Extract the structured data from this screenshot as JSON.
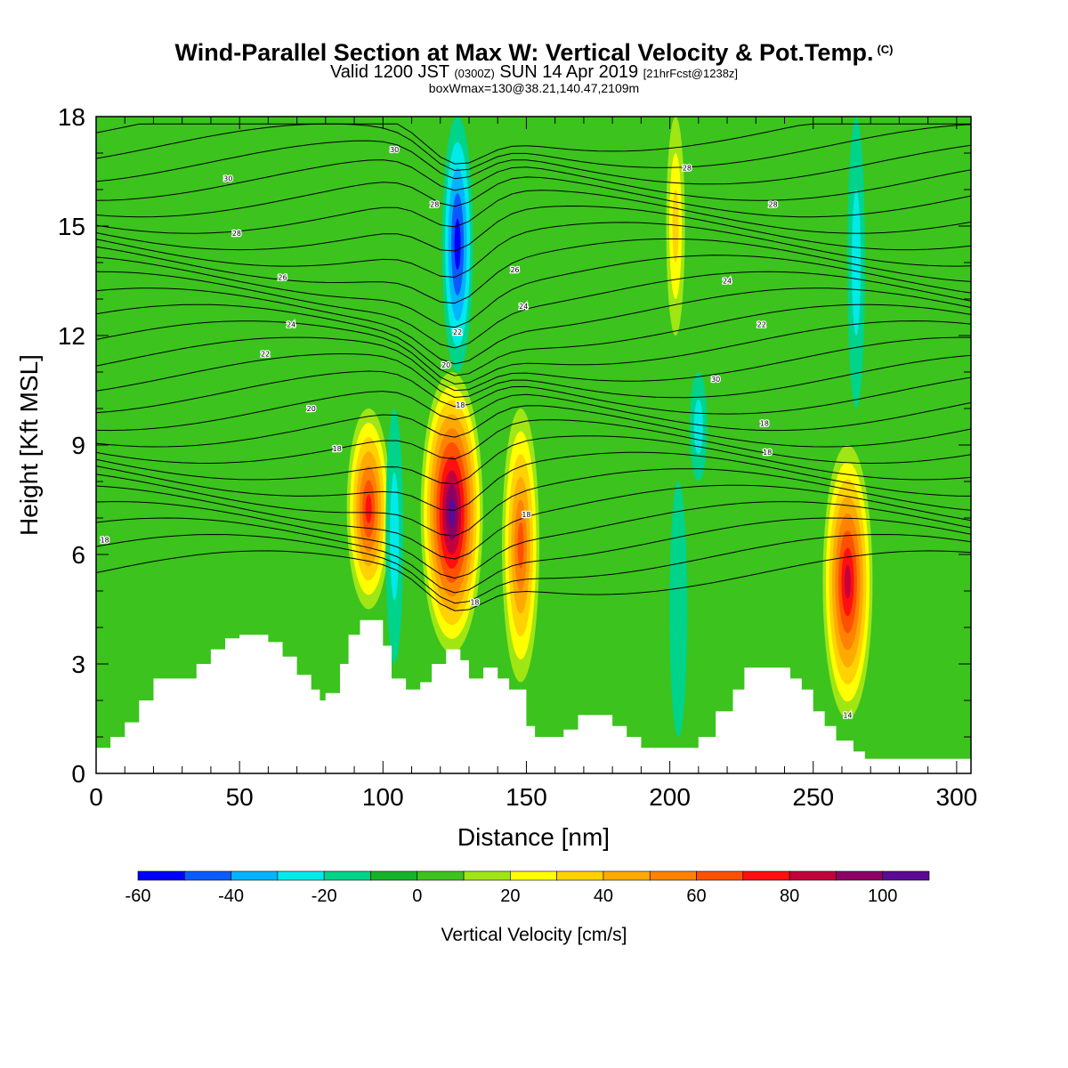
{
  "chart_data": {
    "type": "heatmap",
    "title": "Wind-Parallel Section at Max W: Vertical Velocity & Pot.Temp.",
    "title_mark": "(C)",
    "subtitle_main": "Valid 1200 JST",
    "subtitle_utc": "(0300Z)",
    "subtitle_date": "SUN 14 Apr 2019",
    "subtitle_run": "[21hrFcst@1238z]",
    "subtitle2": "boxWmax=130@38.21,140.47,2109m",
    "xlabel": "Distance [nm]",
    "ylabel": "Height [Kft MSL]",
    "xlim": [
      0,
      305
    ],
    "ylim": [
      0,
      18
    ],
    "x_ticks": [
      "0",
      "50",
      "100",
      "150",
      "200",
      "250",
      "300"
    ],
    "y_ticks": [
      "0",
      "3",
      "6",
      "9",
      "12",
      "15",
      "18"
    ],
    "colorbar": {
      "label": "Vertical Velocity [cm/s]",
      "bounds": [
        -60,
        110
      ],
      "step": 10,
      "tick_labels": [
        "-60",
        "-40",
        "-20",
        "0",
        "20",
        "40",
        "60",
        "80",
        "100"
      ],
      "colors": [
        "#0000ff",
        "#0a5bff",
        "#00b4ff",
        "#00eaea",
        "#00d38a",
        "#14b428",
        "#3cc31e",
        "#a0e614",
        "#ffff00",
        "#ffd200",
        "#ffaa00",
        "#ff8200",
        "#ff5000",
        "#ff0f0f",
        "#c3003c",
        "#8c0064",
        "#5a0a96"
      ]
    },
    "background_value": 0,
    "velocity_features": [
      {
        "x": 95,
        "height_range": [
          4.5,
          10
        ],
        "peak": 70
      },
      {
        "x": 124,
        "height_range": [
          3.3,
          11
        ],
        "peak": 100
      },
      {
        "x": 148,
        "height_range": [
          2.5,
          10
        ],
        "peak": 60
      },
      {
        "x": 262,
        "height_range": [
          1.5,
          9
        ],
        "peak": 80
      },
      {
        "x": 126,
        "height_range": [
          11,
          18
        ],
        "peak": -50
      },
      {
        "x": 104,
        "height_range": [
          3,
          10
        ],
        "peak": -20
      },
      {
        "x": 203,
        "height_range": [
          1,
          8
        ],
        "peak": -15
      },
      {
        "x": 265,
        "height_range": [
          10,
          18
        ],
        "peak": -25
      },
      {
        "x": 202,
        "height_range": [
          12,
          18
        ],
        "peak": 30
      },
      {
        "x": 210,
        "height_range": [
          8,
          11
        ],
        "peak": -25
      }
    ],
    "terrain": [
      [
        0,
        0.7
      ],
      [
        5,
        1
      ],
      [
        10,
        1.4
      ],
      [
        15,
        2
      ],
      [
        20,
        2.6
      ],
      [
        30,
        2.6
      ],
      [
        35,
        3
      ],
      [
        40,
        3.4
      ],
      [
        45,
        3.7
      ],
      [
        50,
        3.8
      ],
      [
        55,
        3.8
      ],
      [
        60,
        3.6
      ],
      [
        65,
        3.2
      ],
      [
        70,
        2.7
      ],
      [
        75,
        2.3
      ],
      [
        78,
        2
      ],
      [
        80,
        2.2
      ],
      [
        85,
        3
      ],
      [
        88,
        3.8
      ],
      [
        92,
        4.2
      ],
      [
        98,
        4.2
      ],
      [
        100,
        3.5
      ],
      [
        103,
        2.6
      ],
      [
        108,
        2.3
      ],
      [
        113,
        2.5
      ],
      [
        117,
        3
      ],
      [
        122,
        3.4
      ],
      [
        127,
        3.1
      ],
      [
        130,
        2.6
      ],
      [
        135,
        2.9
      ],
      [
        140,
        2.6
      ],
      [
        144,
        2.3
      ],
      [
        150,
        1.3
      ],
      [
        153,
        1
      ],
      [
        163,
        1.2
      ],
      [
        168,
        1.6
      ],
      [
        176,
        1.6
      ],
      [
        180,
        1.3
      ],
      [
        185,
        1
      ],
      [
        190,
        0.7
      ],
      [
        205,
        0.7
      ],
      [
        210,
        1
      ],
      [
        216,
        1.7
      ],
      [
        222,
        2.3
      ],
      [
        226,
        2.9
      ],
      [
        236,
        2.9
      ],
      [
        242,
        2.6
      ],
      [
        246,
        2.3
      ],
      [
        250,
        1.7
      ],
      [
        254,
        1.3
      ],
      [
        258,
        0.9
      ],
      [
        264,
        0.6
      ],
      [
        268,
        0.4
      ],
      [
        305,
        0.4
      ]
    ],
    "theta_isolines": [
      {
        "value": 18,
        "label_at": [
          3,
          6.4
        ]
      },
      {
        "value": 18,
        "label_at": [
          84,
          8.9
        ]
      },
      {
        "value": 18,
        "label_at": [
          127,
          10.1
        ]
      },
      {
        "value": 18,
        "label_at": [
          150,
          7.1
        ]
      },
      {
        "value": 18,
        "label_at": [
          132,
          4.7
        ]
      },
      {
        "value": 18,
        "label_at": [
          233,
          9.6
        ]
      },
      {
        "value": 18,
        "label_at": [
          234,
          8.8
        ]
      },
      {
        "value": 20,
        "label_at": [
          75,
          10
        ]
      },
      {
        "value": 20,
        "label_at": [
          122,
          11.2
        ]
      },
      {
        "value": 22,
        "label_at": [
          59,
          11.5
        ]
      },
      {
        "value": 22,
        "label_at": [
          126,
          12.1
        ]
      },
      {
        "value": 22,
        "label_at": [
          232,
          12.3
        ]
      },
      {
        "value": 24,
        "label_at": [
          68,
          12.3
        ]
      },
      {
        "value": 24,
        "label_at": [
          149,
          12.8
        ]
      },
      {
        "value": 24,
        "label_at": [
          220,
          13.5
        ]
      },
      {
        "value": 26,
        "label_at": [
          65,
          13.6
        ]
      },
      {
        "value": 26,
        "label_at": [
          146,
          13.8
        ]
      },
      {
        "value": 28,
        "label_at": [
          49,
          14.8
        ]
      },
      {
        "value": 28,
        "label_at": [
          236,
          15.6
        ]
      },
      {
        "value": 28,
        "label_at": [
          206,
          16.6
        ]
      },
      {
        "value": 28,
        "label_at": [
          118,
          15.6
        ]
      },
      {
        "value": 30,
        "label_at": [
          46,
          16.3
        ]
      },
      {
        "value": 30,
        "label_at": [
          104,
          17.1
        ]
      },
      {
        "value": 30,
        "label_at": [
          216,
          10.8
        ]
      },
      {
        "value": 14,
        "label_at": [
          262,
          1.6
        ]
      }
    ]
  }
}
